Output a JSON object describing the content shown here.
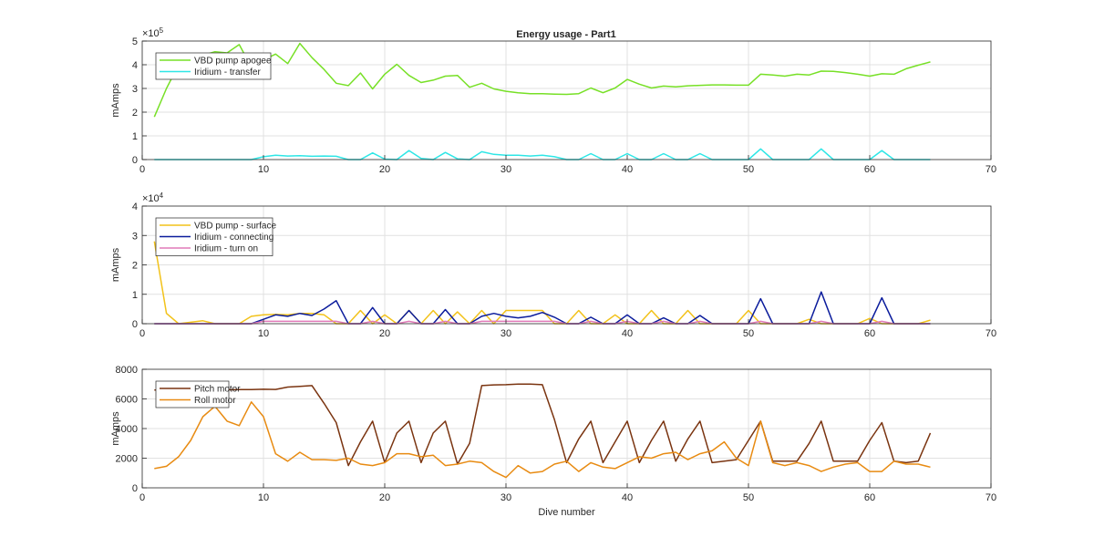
{
  "figure": {
    "title": "Energy usage - Part1"
  },
  "chart_data": [
    {
      "type": "line",
      "title": "Energy usage - Part1",
      "xlabel": "",
      "ylabel": "mAmps",
      "xlim": [
        0,
        70
      ],
      "ylim": [
        0,
        500000
      ],
      "xticks": [
        0,
        10,
        20,
        30,
        40,
        50,
        60,
        70
      ],
      "yticks": [
        0,
        100000,
        200000,
        300000,
        400000,
        500000
      ],
      "ytick_labels": [
        "0",
        "1",
        "2",
        "3",
        "4",
        "5"
      ],
      "exponent_label": "×10",
      "exponent_power": "5",
      "grid": true,
      "legend_position": "top-left",
      "series": [
        {
          "name": "VBD pump apogee",
          "color": "#77e026",
          "x": [
            1,
            2,
            3,
            4,
            5,
            6,
            7,
            8,
            9,
            10,
            11,
            12,
            13,
            14,
            15,
            16,
            17,
            18,
            19,
            20,
            21,
            22,
            23,
            24,
            25,
            26,
            27,
            28,
            29,
            30,
            31,
            32,
            33,
            34,
            35,
            36,
            37,
            38,
            39,
            40,
            41,
            42,
            43,
            44,
            45,
            46,
            47,
            48,
            49,
            50,
            51,
            52,
            53,
            54,
            55,
            56,
            57,
            58,
            59,
            60,
            61,
            62,
            63,
            64,
            65
          ],
          "values": [
            180000,
            300000,
            400000,
            420000,
            440000,
            455000,
            450000,
            485000,
            390000,
            420000,
            445000,
            405000,
            490000,
            430000,
            380000,
            322000,
            312000,
            365000,
            298000,
            360000,
            402000,
            355000,
            325000,
            335000,
            352000,
            355000,
            305000,
            322000,
            298000,
            288000,
            282000,
            278000,
            278000,
            276000,
            275000,
            278000,
            302000,
            282000,
            302000,
            338000,
            318000,
            302000,
            310000,
            307000,
            311000,
            313000,
            315000,
            315000,
            314000,
            314000,
            360000,
            357000,
            352000,
            360000,
            357000,
            373000,
            372000,
            367000,
            360000,
            352000,
            362000,
            360000,
            383000,
            398000,
            412000
          ]
        },
        {
          "name": "Iridium - transfer",
          "color": "#2ee6e6",
          "x": [
            1,
            2,
            3,
            4,
            5,
            6,
            7,
            8,
            9,
            10,
            11,
            12,
            13,
            14,
            15,
            16,
            17,
            18,
            19,
            20,
            21,
            22,
            23,
            24,
            25,
            26,
            27,
            28,
            29,
            30,
            31,
            32,
            33,
            34,
            35,
            36,
            37,
            38,
            39,
            40,
            41,
            42,
            43,
            44,
            45,
            46,
            47,
            48,
            49,
            50,
            51,
            52,
            53,
            54,
            55,
            56,
            57,
            58,
            59,
            60,
            61,
            62,
            63,
            64,
            65
          ],
          "values": [
            0,
            0,
            0,
            0,
            0,
            0,
            0,
            0,
            0,
            12000,
            18000,
            15000,
            16000,
            14000,
            15000,
            14000,
            0,
            0,
            28000,
            2000,
            0,
            38000,
            5000,
            0,
            30000,
            3000,
            0,
            33000,
            22000,
            18000,
            18000,
            15000,
            18000,
            12000,
            0,
            0,
            25000,
            0,
            0,
            25000,
            0,
            0,
            25000,
            0,
            0,
            25000,
            0,
            0,
            0,
            0,
            45000,
            0,
            0,
            0,
            0,
            45000,
            0,
            0,
            0,
            0,
            38000,
            0,
            0,
            0,
            0
          ]
        }
      ]
    },
    {
      "type": "line",
      "title": "",
      "xlabel": "",
      "ylabel": "mAmps",
      "xlim": [
        0,
        70
      ],
      "ylim": [
        0,
        40000
      ],
      "xticks": [
        0,
        10,
        20,
        30,
        40,
        50,
        60,
        70
      ],
      "yticks": [
        0,
        10000,
        20000,
        30000,
        40000
      ],
      "ytick_labels": [
        "0",
        "1",
        "2",
        "3",
        "4"
      ],
      "exponent_label": "×10",
      "exponent_power": "4",
      "grid": true,
      "legend_position": "top-left",
      "series": [
        {
          "name": "VBD pump - surface",
          "color": "#f2c21a",
          "x": [
            1,
            2,
            3,
            4,
            5,
            6,
            7,
            8,
            9,
            10,
            11,
            12,
            13,
            14,
            15,
            16,
            17,
            18,
            19,
            20,
            21,
            22,
            23,
            24,
            25,
            26,
            27,
            28,
            29,
            30,
            31,
            32,
            33,
            34,
            35,
            36,
            37,
            38,
            39,
            40,
            41,
            42,
            43,
            44,
            45,
            46,
            47,
            48,
            49,
            50,
            51,
            52,
            53,
            54,
            55,
            56,
            57,
            58,
            59,
            60,
            61,
            62,
            63,
            64,
            65
          ],
          "values": [
            28000,
            3500,
            0,
            500,
            1000,
            0,
            0,
            0,
            2500,
            3000,
            3200,
            3000,
            3500,
            3500,
            3000,
            0,
            0,
            4500,
            0,
            3000,
            0,
            4500,
            0,
            4500,
            0,
            4000,
            0,
            4500,
            0,
            4500,
            4500,
            4500,
            4500,
            0,
            0,
            4500,
            0,
            0,
            3000,
            0,
            0,
            4500,
            0,
            0,
            4500,
            0,
            0,
            0,
            0,
            4500,
            0,
            0,
            0,
            0,
            1500,
            0,
            0,
            0,
            0,
            1800,
            0,
            0,
            0,
            0,
            1200
          ]
        },
        {
          "name": "Iridium - connecting",
          "color": "#0b1c9c",
          "x": [
            1,
            2,
            3,
            4,
            5,
            6,
            7,
            8,
            9,
            10,
            11,
            12,
            13,
            14,
            15,
            16,
            17,
            18,
            19,
            20,
            21,
            22,
            23,
            24,
            25,
            26,
            27,
            28,
            29,
            30,
            31,
            32,
            33,
            34,
            35,
            36,
            37,
            38,
            39,
            40,
            41,
            42,
            43,
            44,
            45,
            46,
            47,
            48,
            49,
            50,
            51,
            52,
            53,
            54,
            55,
            56,
            57,
            58,
            59,
            60,
            61,
            62,
            63,
            64,
            65
          ],
          "values": [
            0,
            0,
            0,
            0,
            0,
            0,
            0,
            0,
            0,
            1500,
            3000,
            2500,
            3500,
            2800,
            5000,
            7800,
            0,
            0,
            5500,
            0,
            0,
            4500,
            0,
            0,
            4800,
            0,
            0,
            2500,
            3500,
            2500,
            2000,
            2500,
            3800,
            2200,
            0,
            0,
            2200,
            0,
            0,
            3000,
            0,
            0,
            2000,
            0,
            0,
            2800,
            0,
            0,
            0,
            0,
            8500,
            0,
            0,
            0,
            0,
            10800,
            0,
            0,
            0,
            0,
            8800,
            0,
            0,
            0,
            0
          ]
        },
        {
          "name": "Iridium - turn on",
          "color": "#e07ab8",
          "x": [
            1,
            2,
            3,
            4,
            5,
            6,
            7,
            8,
            9,
            10,
            11,
            12,
            13,
            14,
            15,
            16,
            17,
            18,
            19,
            20,
            21,
            22,
            23,
            24,
            25,
            26,
            27,
            28,
            29,
            30,
            31,
            32,
            33,
            34,
            35,
            36,
            37,
            38,
            39,
            40,
            41,
            42,
            43,
            44,
            45,
            46,
            47,
            48,
            49,
            50,
            51,
            52,
            53,
            54,
            55,
            56,
            57,
            58,
            59,
            60,
            61,
            62,
            63,
            64,
            65
          ],
          "values": [
            0,
            0,
            0,
            0,
            0,
            0,
            0,
            0,
            0,
            800,
            800,
            800,
            800,
            800,
            800,
            800,
            0,
            0,
            800,
            0,
            0,
            800,
            0,
            0,
            800,
            0,
            0,
            800,
            800,
            800,
            800,
            800,
            800,
            800,
            0,
            0,
            800,
            0,
            0,
            800,
            0,
            0,
            800,
            0,
            0,
            800,
            0,
            0,
            0,
            0,
            800,
            0,
            0,
            0,
            0,
            800,
            0,
            0,
            0,
            0,
            800,
            0,
            0,
            0,
            0
          ]
        }
      ]
    },
    {
      "type": "line",
      "title": "",
      "xlabel": "Dive number",
      "ylabel": "mAmps",
      "xlim": [
        0,
        70
      ],
      "ylim": [
        0,
        8000
      ],
      "xticks": [
        0,
        10,
        20,
        30,
        40,
        50,
        60,
        70
      ],
      "yticks": [
        0,
        2000,
        4000,
        6000,
        8000
      ],
      "ytick_labels": [
        "0",
        "2000",
        "4000",
        "6000",
        "8000"
      ],
      "exponent_label": "",
      "exponent_power": "",
      "grid": true,
      "legend_position": "top-left",
      "series": [
        {
          "name": "Pitch motor",
          "color": "#7a3410",
          "x": [
            1,
            2,
            3,
            4,
            5,
            6,
            7,
            8,
            9,
            10,
            11,
            12,
            13,
            14,
            15,
            16,
            17,
            18,
            19,
            20,
            21,
            22,
            23,
            24,
            25,
            26,
            27,
            28,
            29,
            30,
            31,
            32,
            33,
            34,
            35,
            36,
            37,
            38,
            39,
            40,
            41,
            42,
            43,
            44,
            45,
            46,
            47,
            48,
            49,
            50,
            51,
            52,
            53,
            54,
            55,
            56,
            57,
            58,
            59,
            60,
            61,
            62,
            63,
            64,
            65
          ],
          "values": [
            6600,
            6620,
            6620,
            6630,
            6630,
            6620,
            6620,
            6630,
            6630,
            6650,
            6640,
            6800,
            6850,
            6900,
            5700,
            4400,
            1500,
            3100,
            4500,
            1700,
            3700,
            4500,
            1700,
            3700,
            4500,
            1600,
            3000,
            6900,
            6950,
            6960,
            7000,
            7000,
            6960,
            4600,
            1700,
            3300,
            4500,
            1700,
            3100,
            4500,
            1700,
            3200,
            4500,
            1800,
            3300,
            4500,
            1700,
            1800,
            1900,
            3200,
            4500,
            1800,
            1800,
            1800,
            3000,
            4500,
            1800,
            1800,
            1800,
            3200,
            4400,
            1800,
            1700,
            1800,
            3700
          ]
        },
        {
          "name": "Roll motor",
          "color": "#e88b12",
          "x": [
            1,
            2,
            3,
            4,
            5,
            6,
            7,
            8,
            9,
            10,
            11,
            12,
            13,
            14,
            15,
            16,
            17,
            18,
            19,
            20,
            21,
            22,
            23,
            24,
            25,
            26,
            27,
            28,
            29,
            30,
            31,
            32,
            33,
            34,
            35,
            36,
            37,
            38,
            39,
            40,
            41,
            42,
            43,
            44,
            45,
            46,
            47,
            48,
            49,
            50,
            51,
            52,
            53,
            54,
            55,
            56,
            57,
            58,
            59,
            60,
            61,
            62,
            63,
            64,
            65
          ],
          "values": [
            1300,
            1450,
            2100,
            3200,
            4800,
            5500,
            4500,
            4200,
            5800,
            4800,
            2300,
            1800,
            2400,
            1900,
            1900,
            1850,
            2000,
            1600,
            1500,
            1700,
            2300,
            2300,
            2100,
            2200,
            1500,
            1600,
            1800,
            1700,
            1100,
            700,
            1500,
            1000,
            1100,
            1600,
            1800,
            1100,
            1700,
            1400,
            1300,
            1700,
            2100,
            2000,
            2300,
            2400,
            1900,
            2300,
            2500,
            3100,
            2000,
            1500,
            4500,
            1700,
            1500,
            1700,
            1500,
            1100,
            1400,
            1600,
            1700,
            1100,
            1100,
            1800,
            1600,
            1600,
            1400
          ]
        }
      ]
    }
  ]
}
